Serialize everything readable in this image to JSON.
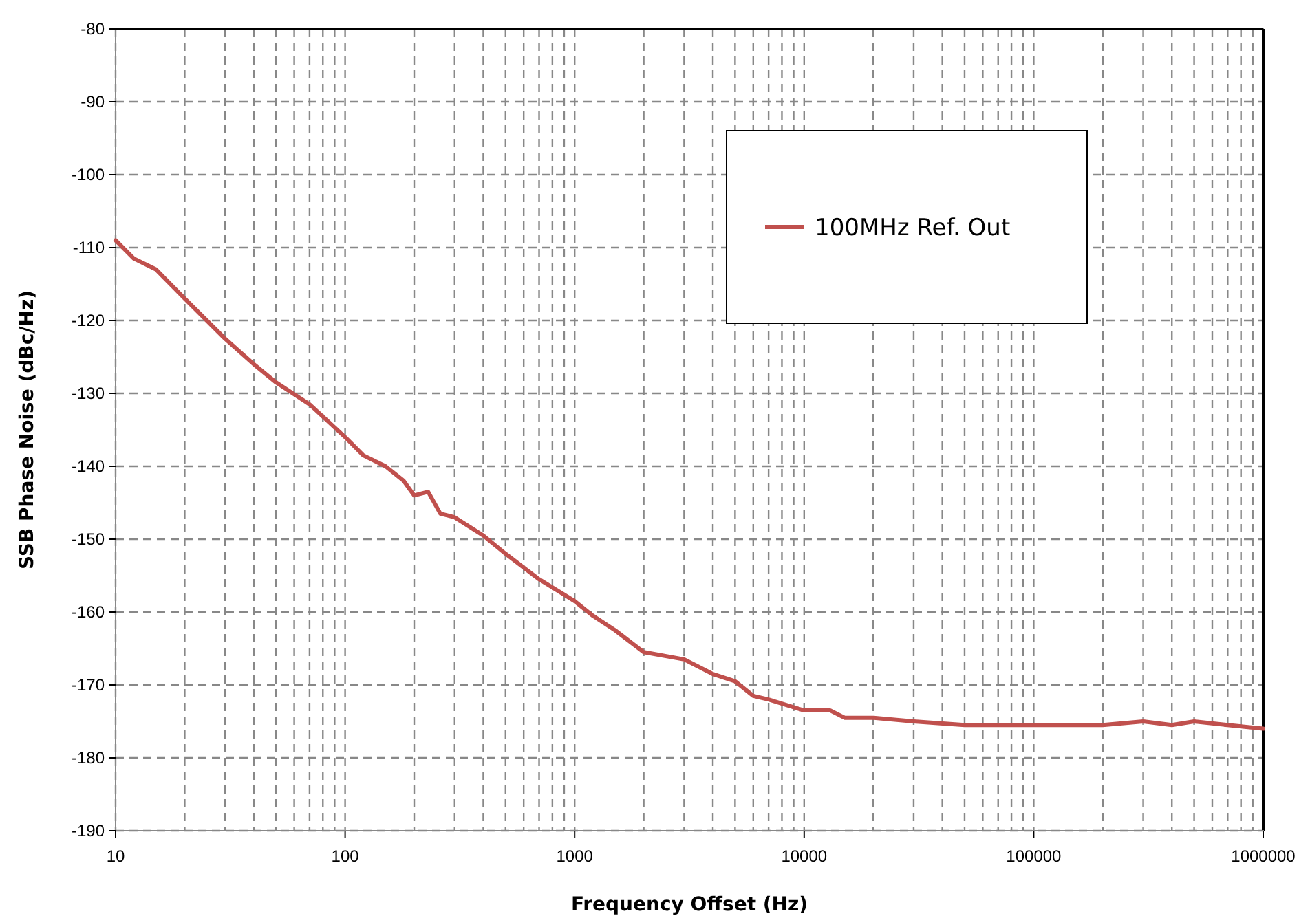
{
  "chart_data": {
    "type": "line",
    "xlabel": "Frequency Offset (Hz)",
    "ylabel": "SSB Phase Noise (dBc/Hz)",
    "log": "x",
    "grid": true,
    "legend": "top right",
    "marker": "none",
    "line_style": "solid",
    "xlim": [
      10,
      1000000
    ],
    "xticks": [
      10,
      100,
      1000,
      10000,
      100000,
      1000000
    ],
    "ylim": [
      -190,
      -80
    ],
    "yticks": [
      -190,
      -180,
      -170,
      -160,
      -150,
      -140,
      -130,
      -120,
      -110,
      -100,
      -90,
      -80
    ],
    "x": [
      10,
      12,
      15,
      20,
      30,
      40,
      50,
      70,
      100,
      120,
      150,
      180,
      200,
      230,
      260,
      300,
      400,
      500,
      700,
      1000,
      1200,
      1500,
      2000,
      3000,
      4000,
      5000,
      6000,
      7000,
      10000,
      13000,
      15000,
      20000,
      30000,
      50000,
      100000,
      200000,
      300000,
      400000,
      500000,
      700000,
      1000000
    ],
    "series": [
      {
        "name": "100MHz Ref. Out",
        "color": "#c0504d",
        "values": [
          -109,
          -111.5,
          -113,
          -117,
          -122.5,
          -126,
          -128.5,
          -131.5,
          -136,
          -138.5,
          -140,
          -142,
          -144,
          -143.5,
          -146.5,
          -147,
          -149.5,
          -152,
          -155.5,
          -158.5,
          -160.5,
          -162.5,
          -165.5,
          -166.5,
          -168.5,
          -169.5,
          -171.5,
          -172,
          -173.5,
          -173.5,
          -174.5,
          -174.5,
          -175,
          -175.5,
          -175.5,
          -175.5,
          -175,
          -175.5,
          -175,
          -175.5,
          -176
        ]
      }
    ]
  }
}
